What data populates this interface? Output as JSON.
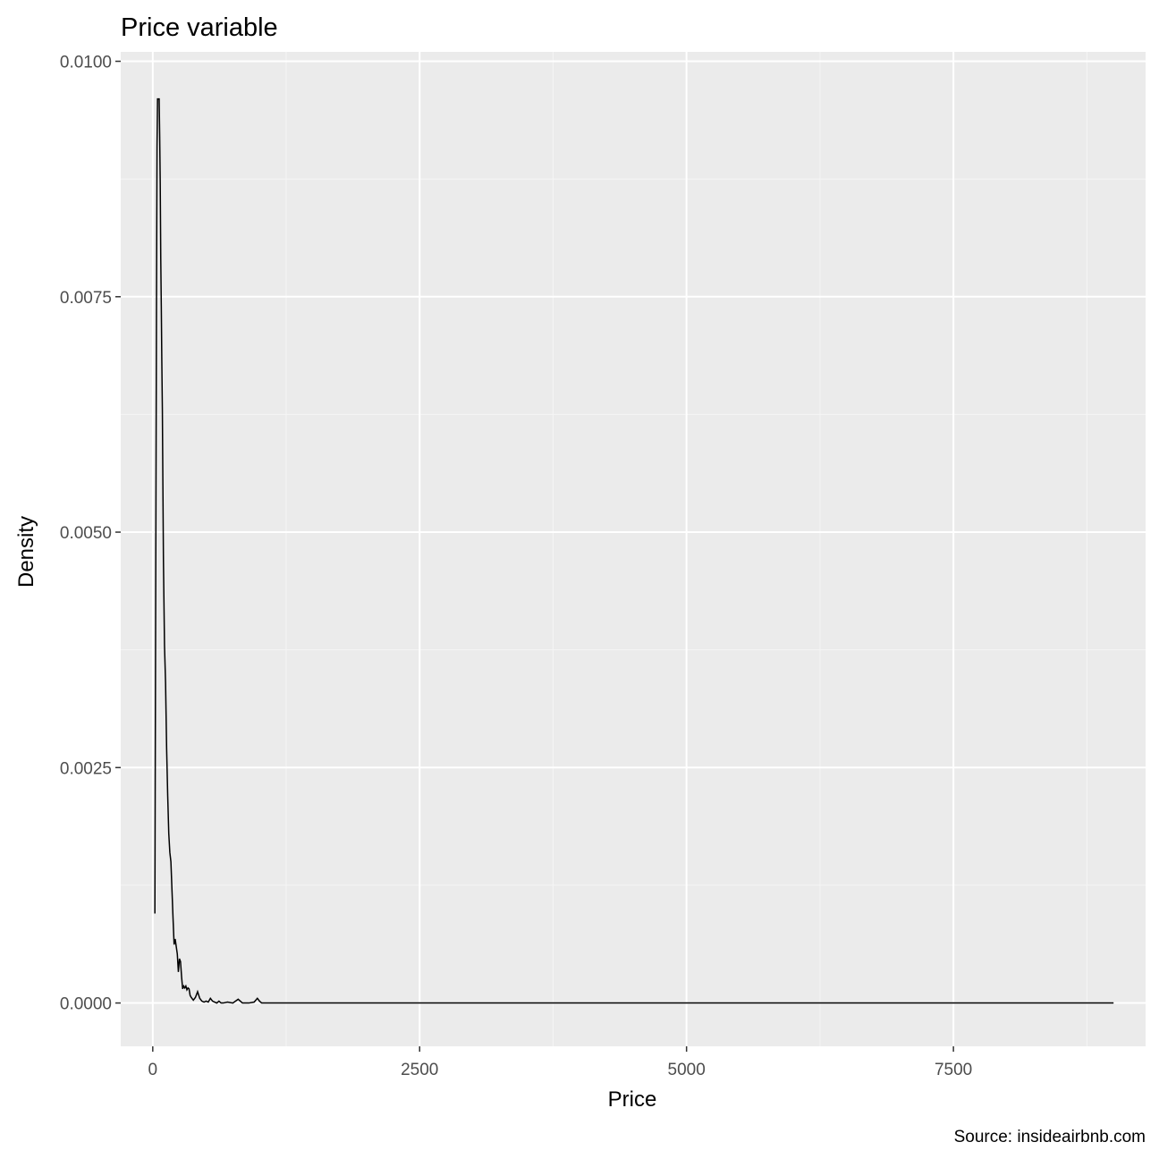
{
  "chart_data": {
    "type": "line",
    "title": "Price variable",
    "xlabel": "Price",
    "ylabel": "Density",
    "caption": "Source: insideairbnb.com",
    "xlim": [
      -300,
      9300
    ],
    "ylim": [
      -0.00046,
      0.0101
    ],
    "x_ticks": [
      0,
      2500,
      5000,
      7500
    ],
    "x_tick_labels": [
      "0",
      "2500",
      "5000",
      "7500"
    ],
    "y_ticks": [
      0.0,
      0.0025,
      0.005,
      0.0075,
      0.01
    ],
    "y_tick_labels": [
      "0.0000",
      "0.0025",
      "0.0050",
      "0.0075",
      "0.0100"
    ],
    "grid": true,
    "series": [
      {
        "x": [
          20,
          25,
          30,
          35,
          40,
          45,
          50,
          55,
          60,
          65,
          70,
          75,
          80,
          85,
          90,
          95,
          100,
          110,
          120,
          130,
          140,
          150,
          160,
          170,
          180,
          190,
          200,
          210,
          220,
          230,
          240,
          250,
          260,
          270,
          280,
          290,
          300,
          310,
          320,
          330,
          340,
          350,
          360,
          380,
          400,
          420,
          440,
          460,
          480,
          500,
          520,
          540,
          560,
          580,
          600,
          620,
          640,
          660,
          700,
          750,
          800,
          820,
          840,
          860,
          900,
          950,
          980,
          1000,
          1020,
          1040,
          1100,
          1500,
          2000,
          3000,
          4000,
          5000,
          6000,
          7000,
          8000,
          9000
        ],
        "y": [
          0.00095,
          0.0032,
          0.0053,
          0.0074,
          0.0091,
          0.0096,
          0.0096,
          0.0096,
          0.0096,
          0.0092,
          0.0087,
          0.0079,
          0.0074,
          0.0068,
          0.0063,
          0.0055,
          0.0047,
          0.0038,
          0.0034,
          0.0027,
          0.0022,
          0.0018,
          0.0016,
          0.0015,
          0.0012,
          0.0009,
          0.00062,
          0.00068,
          0.0006,
          0.00052,
          0.00033,
          0.00047,
          0.00044,
          0.00028,
          0.00015,
          0.00018,
          0.00016,
          0.00018,
          0.00014,
          0.00016,
          0.00015,
          8e-05,
          6e-05,
          3e-05,
          6e-05,
          0.00012,
          5e-05,
          2e-05,
          1e-05,
          2e-05,
          1e-05,
          5e-05,
          2e-05,
          1e-05,
          0.0,
          2e-05,
          0.0,
          0.0,
          1e-05,
          0.0,
          4e-05,
          2e-05,
          0.0,
          0.0,
          0.0,
          1e-05,
          5e-05,
          2e-05,
          0.0,
          0.0,
          0.0,
          0.0,
          0.0,
          0.0,
          0.0,
          0.0,
          0.0,
          0.0,
          0.0,
          0.0
        ]
      }
    ]
  },
  "colors": {
    "panel_bg": "#ebebeb",
    "grid_major": "#ffffff",
    "grid_minor": "#f5f5f5",
    "line": "#000000",
    "tick": "#333333"
  }
}
